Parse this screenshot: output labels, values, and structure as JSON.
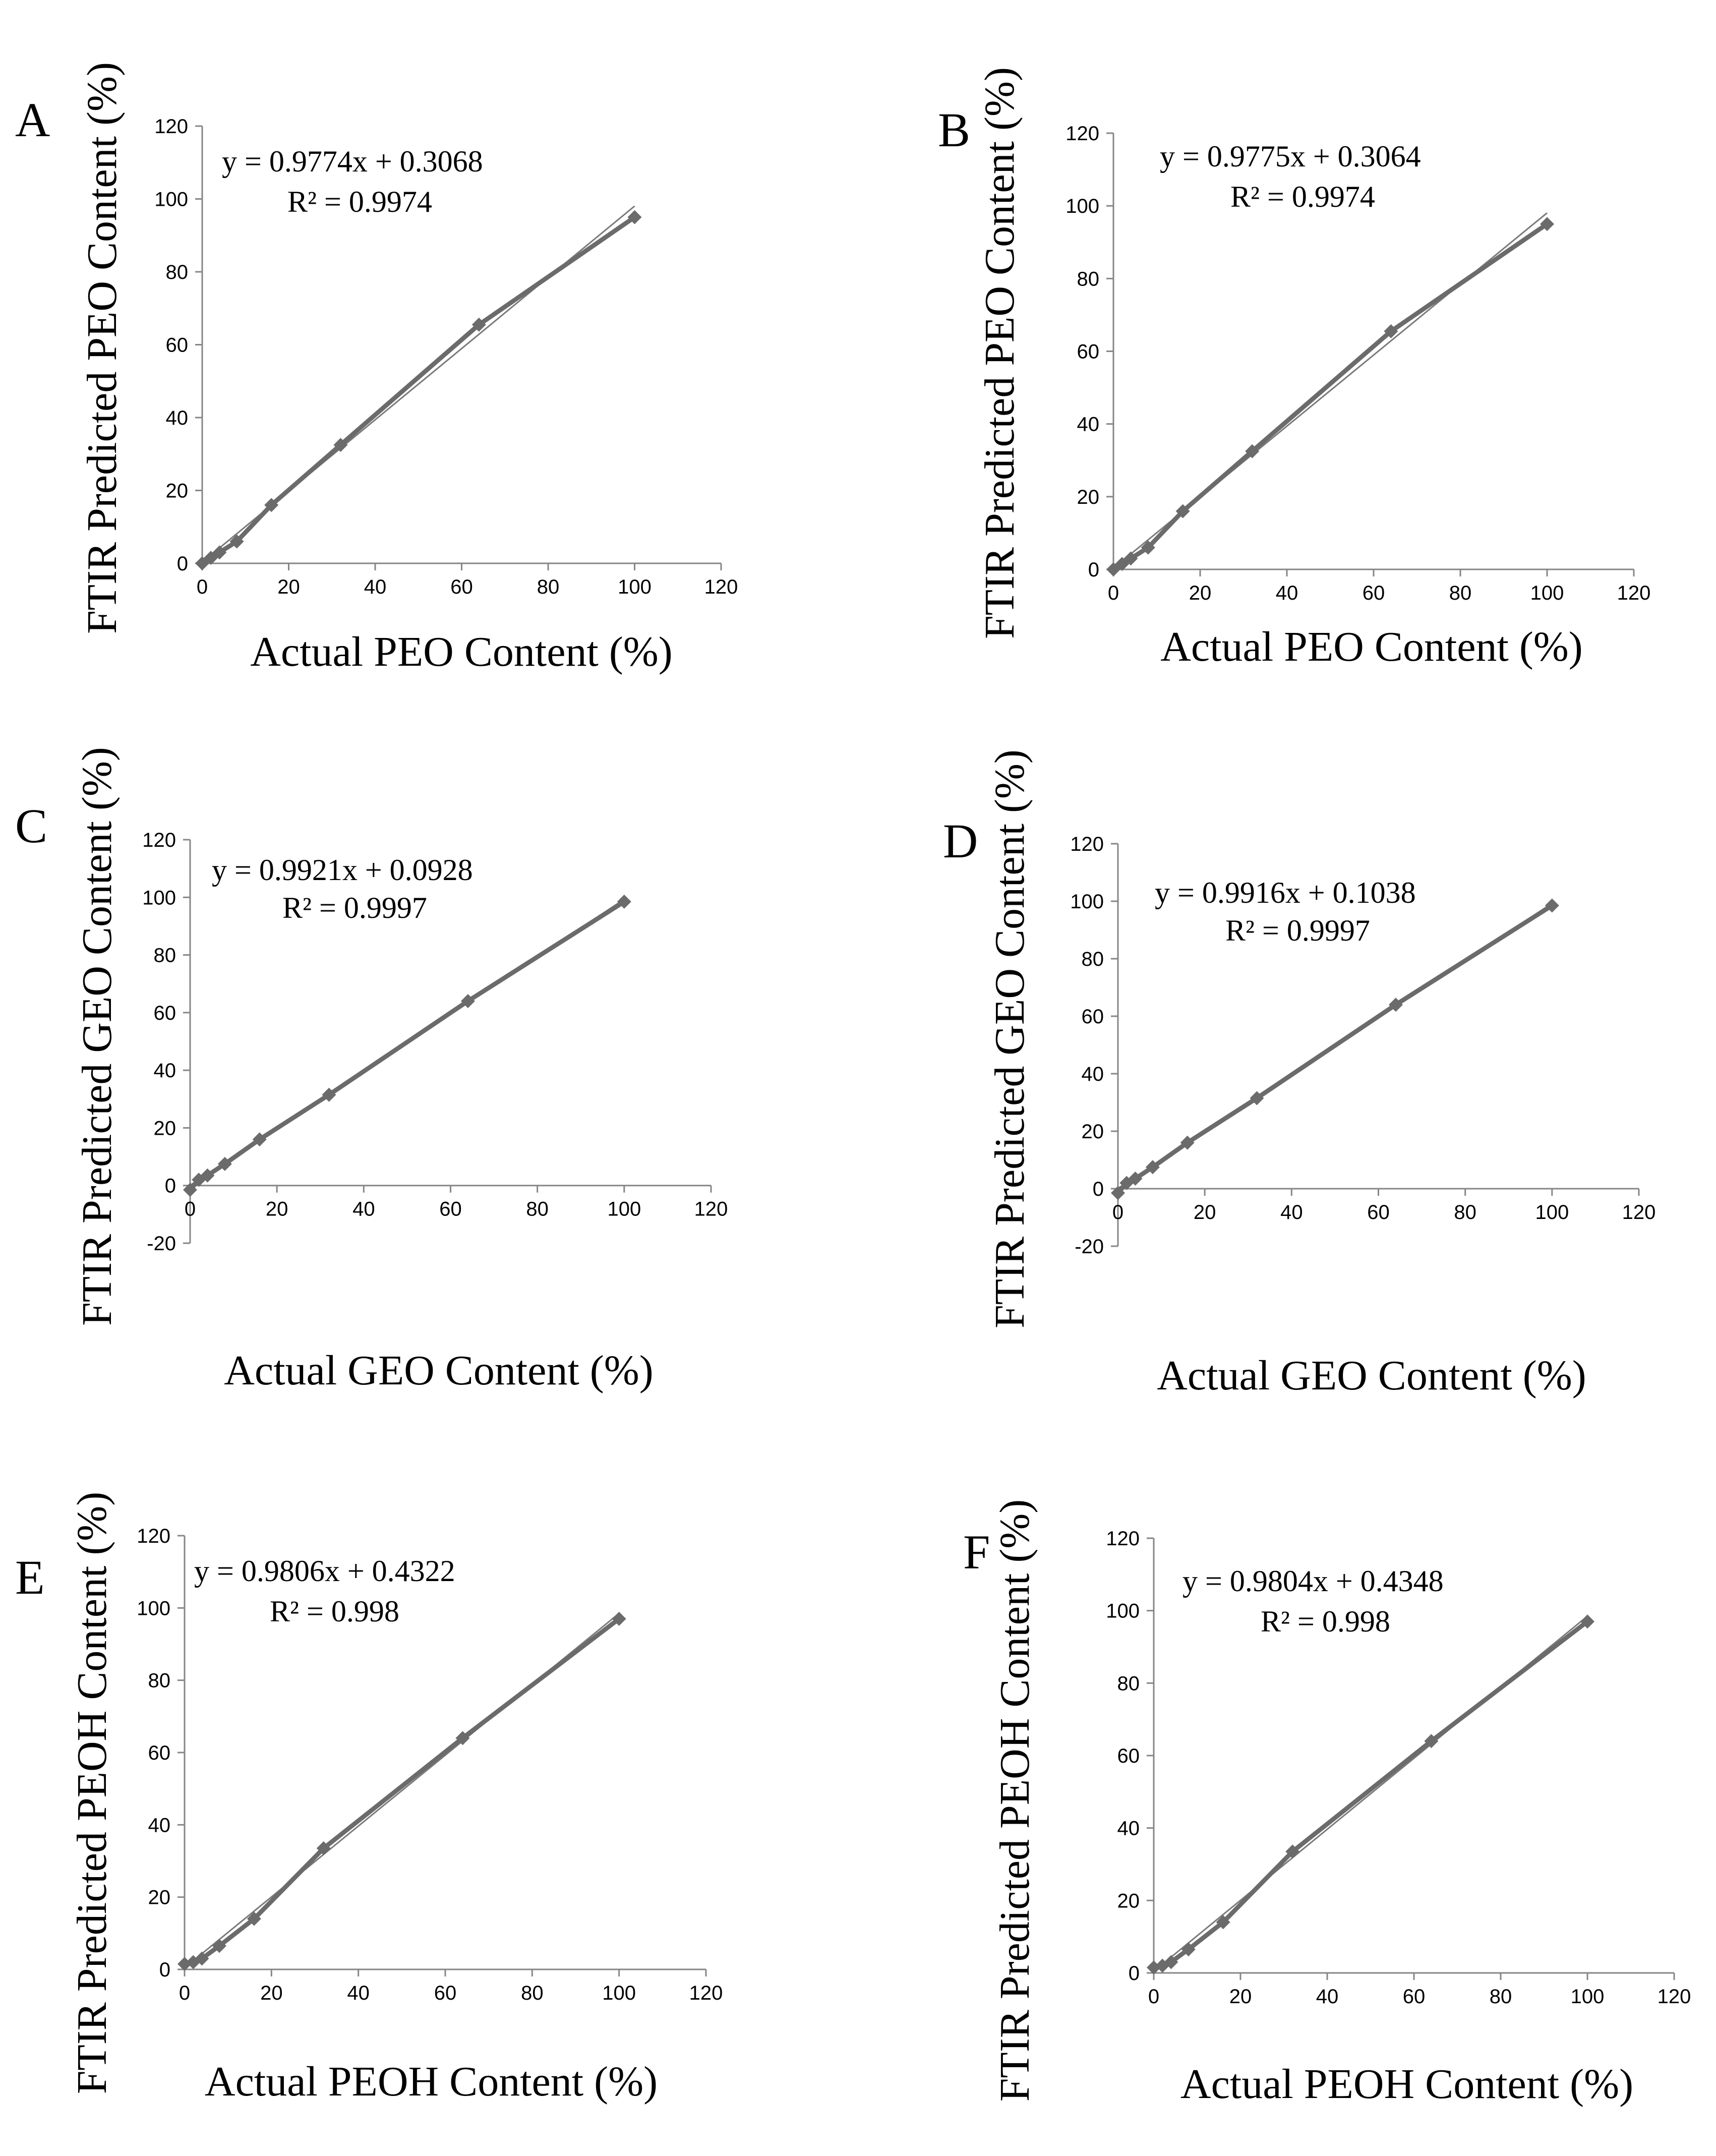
{
  "chart_data": [
    {
      "type": "scatter",
      "panel_label": "A",
      "xlabel": "Actual PEO Content (%)",
      "ylabel": "FTIR Predicted PEO Content (%)",
      "xlim": [
        0,
        120
      ],
      "ylim": [
        0,
        120
      ],
      "xticks": [
        "0",
        "20",
        "40",
        "60",
        "80",
        "100",
        "120"
      ],
      "yticks": [
        "0",
        "20",
        "40",
        "60",
        "80",
        "100",
        "120"
      ],
      "x": [
        0,
        2,
        4,
        8,
        16,
        32,
        64,
        100
      ],
      "y": [
        0,
        1.5,
        3,
        6,
        16,
        32.5,
        65.5,
        95
      ],
      "trend_slope": 0.9774,
      "trend_intercept": 0.3068,
      "equation": "y = 0.9774x + 0.3068",
      "r2": "R² = 0.9974"
    },
    {
      "type": "scatter",
      "panel_label": "B",
      "xlabel": "Actual PEO Content (%)",
      "ylabel": "FTIR Predicted PEO Content (%)",
      "xlim": [
        0,
        120
      ],
      "ylim": [
        0,
        120
      ],
      "xticks": [
        "0",
        "20",
        "40",
        "60",
        "80",
        "100",
        "120"
      ],
      "yticks": [
        "0",
        "20",
        "40",
        "60",
        "80",
        "100",
        "120"
      ],
      "x": [
        0,
        2,
        4,
        8,
        16,
        32,
        64,
        100
      ],
      "y": [
        0,
        1.5,
        3,
        6,
        16,
        32.5,
        65.5,
        95
      ],
      "trend_slope": 0.9775,
      "trend_intercept": 0.3064,
      "equation": "y = 0.9775x + 0.3064",
      "r2": "R² = 0.9974"
    },
    {
      "type": "scatter",
      "panel_label": "C",
      "xlabel": "Actual GEO Content (%)",
      "ylabel": "FTIR Predicted GEO Content (%)",
      "xlim": [
        0,
        120
      ],
      "ylim": [
        -20,
        120
      ],
      "xticks": [
        "0",
        "20",
        "40",
        "60",
        "80",
        "100",
        "120"
      ],
      "yticks": [
        "-20",
        "0",
        "20",
        "40",
        "60",
        "80",
        "100",
        "120"
      ],
      "x": [
        0,
        2,
        4,
        8,
        16,
        32,
        64,
        100
      ],
      "y": [
        -1.5,
        2,
        3.5,
        7.5,
        16,
        31.5,
        64,
        98.5
      ],
      "trend_slope": 0.9921,
      "trend_intercept": 0.0928,
      "equation": "y = 0.9921x + 0.0928",
      "r2": "R² = 0.9997"
    },
    {
      "type": "scatter",
      "panel_label": "D",
      "xlabel": "Actual GEO Content (%)",
      "ylabel": "FTIR Predicted GEO Content (%)",
      "xlim": [
        0,
        120
      ],
      "ylim": [
        -20,
        120
      ],
      "xticks": [
        "0",
        "20",
        "40",
        "60",
        "80",
        "100",
        "120"
      ],
      "yticks": [
        "-20",
        "0",
        "20",
        "40",
        "60",
        "80",
        "100",
        "120"
      ],
      "x": [
        0,
        2,
        4,
        8,
        16,
        32,
        64,
        100
      ],
      "y": [
        -1.5,
        2,
        3.5,
        7.5,
        16,
        31.5,
        64,
        98.5
      ],
      "trend_slope": 0.9916,
      "trend_intercept": 0.1038,
      "equation": "y = 0.9916x + 0.1038",
      "r2": "R² = 0.9997"
    },
    {
      "type": "scatter",
      "panel_label": "E",
      "xlabel": "Actual PEOH Content (%)",
      "ylabel": "FTIR Predicted PEOH Content (%)",
      "xlim": [
        0,
        120
      ],
      "ylim": [
        0,
        120
      ],
      "xticks": [
        "0",
        "20",
        "40",
        "60",
        "80",
        "100",
        "120"
      ],
      "yticks": [
        "0",
        "20",
        "40",
        "60",
        "80",
        "100",
        "120"
      ],
      "x": [
        0,
        2,
        4,
        8,
        16,
        32,
        64,
        100
      ],
      "y": [
        1.5,
        2,
        3,
        6.5,
        14,
        33.5,
        64,
        97
      ],
      "trend_slope": 0.9806,
      "trend_intercept": 0.4322,
      "equation": "y = 0.9806x + 0.4322",
      "r2": "R² = 0.998"
    },
    {
      "type": "scatter",
      "panel_label": "F",
      "xlabel": "Actual PEOH Content (%)",
      "ylabel": "FTIR Predicted PEOH Content (%)",
      "xlim": [
        0,
        120
      ],
      "ylim": [
        0,
        120
      ],
      "xticks": [
        "0",
        "20",
        "40",
        "60",
        "80",
        "100",
        "120"
      ],
      "yticks": [
        "0",
        "20",
        "40",
        "60",
        "80",
        "100",
        "120"
      ],
      "x": [
        0,
        2,
        4,
        8,
        16,
        32,
        64,
        100
      ],
      "y": [
        1.5,
        2,
        3,
        6.5,
        14,
        33.5,
        64,
        97
      ],
      "trend_slope": 0.9804,
      "trend_intercept": 0.4348,
      "equation": "y = 0.9804x + 0.4348",
      "r2": "R² = 0.998"
    }
  ]
}
